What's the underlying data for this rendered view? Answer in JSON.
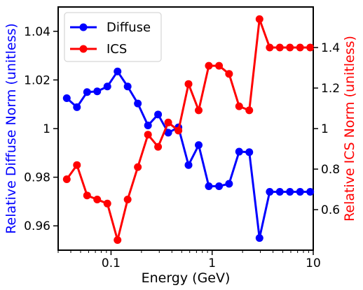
{
  "chart_data": {
    "type": "line",
    "xlabel": "Energy (GeV)",
    "xscale": "log",
    "xlim": [
      0.03,
      10
    ],
    "x_ticks": [
      {
        "value": 0.1,
        "label": "0.1"
      },
      {
        "value": 1,
        "label": "1"
      },
      {
        "value": 10,
        "label": "10"
      }
    ],
    "left_axis": {
      "label": "Relative Diffuse Norm (unitless)",
      "color": "#0000ff",
      "ylim": [
        0.95,
        1.05
      ],
      "ticks": [
        {
          "value": 0.96,
          "label": "0.96"
        },
        {
          "value": 0.98,
          "label": "0.98"
        },
        {
          "value": 1.0,
          "label": "1"
        },
        {
          "value": 1.02,
          "label": "1.02"
        },
        {
          "value": 1.04,
          "label": "1.04"
        }
      ]
    },
    "right_axis": {
      "label": "Relative ICS Norm (unitless)",
      "color": "#ff0000",
      "ylim": [
        0.4,
        1.6
      ],
      "ticks": [
        {
          "value": 0.6,
          "label": "0.6"
        },
        {
          "value": 0.8,
          "label": "0.8"
        },
        {
          "value": 1.0,
          "label": "1"
        },
        {
          "value": 1.2,
          "label": "1.2"
        },
        {
          "value": 1.4,
          "label": "1.4"
        }
      ]
    },
    "legend_position": "top-left",
    "grid": false,
    "series": [
      {
        "name": "Diffuse",
        "axis": "left",
        "color": "#0000ff",
        "x": [
          0.0365,
          0.046,
          0.058,
          0.073,
          0.092,
          0.116,
          0.146,
          0.184,
          0.232,
          0.292,
          0.368,
          0.464,
          0.584,
          0.736,
          0.927,
          1.17,
          1.47,
          1.85,
          2.33,
          2.94,
          3.71,
          4.67,
          5.88,
          7.41,
          9.33
        ],
        "y": [
          1.0125,
          1.0088,
          1.015,
          1.0153,
          1.0173,
          1.0235,
          1.0173,
          1.0103,
          1.0013,
          1.0058,
          0.9983,
          1.0005,
          0.985,
          0.9932,
          0.9763,
          0.9763,
          0.9773,
          0.9905,
          0.9903,
          0.955,
          0.974,
          0.974,
          0.974,
          0.974,
          0.974
        ]
      },
      {
        "name": "ICS",
        "axis": "right",
        "color": "#ff0000",
        "x": [
          0.0365,
          0.046,
          0.058,
          0.073,
          0.092,
          0.116,
          0.146,
          0.184,
          0.232,
          0.292,
          0.368,
          0.464,
          0.584,
          0.736,
          0.927,
          1.17,
          1.47,
          1.85,
          2.33,
          2.94,
          3.71,
          4.67,
          5.88,
          7.41,
          9.33
        ],
        "y": [
          0.75,
          0.82,
          0.67,
          0.65,
          0.63,
          0.45,
          0.65,
          0.81,
          0.97,
          0.91,
          1.03,
          0.99,
          1.22,
          1.09,
          1.31,
          1.31,
          1.27,
          1.11,
          1.09,
          1.54,
          1.4,
          1.4,
          1.4,
          1.4,
          1.4
        ]
      }
    ]
  }
}
